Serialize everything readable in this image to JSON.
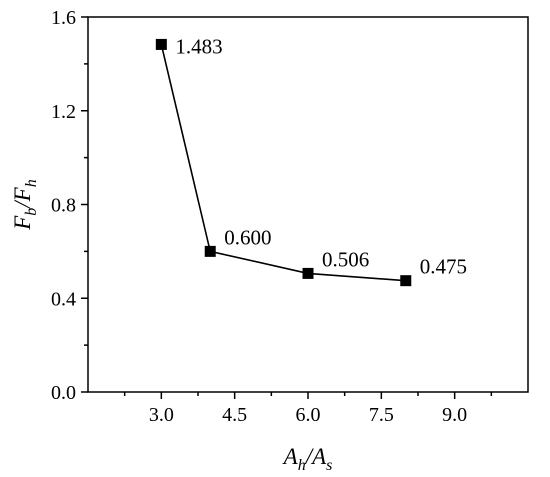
{
  "chart_data": {
    "type": "line",
    "title": "",
    "x": [
      3.0,
      4.0,
      6.0,
      8.0
    ],
    "series": [
      {
        "values": [
          1.483,
          0.6,
          0.506,
          0.475
        ],
        "marker": "square",
        "color": "#000000"
      }
    ],
    "data_labels": [
      "1.483",
      "0.600",
      "0.506",
      "0.475"
    ],
    "xlabel": {
      "main1": "A",
      "sub1": "h",
      "sep": "/",
      "main2": "A",
      "sub2": "s"
    },
    "ylabel": {
      "main1": "F",
      "sub1": "b",
      "sep": "/",
      "main2": "F",
      "sub2": "h"
    },
    "xlim": [
      1.5,
      10.5
    ],
    "ylim": [
      0.0,
      1.6
    ],
    "x_ticks": [
      3.0,
      4.5,
      6.0,
      7.5,
      9.0
    ],
    "x_tick_labels": [
      "3.0",
      "4.5",
      "6.0",
      "7.5",
      "9.0"
    ],
    "y_ticks": [
      0.0,
      0.4,
      0.8,
      1.2,
      1.6
    ],
    "y_tick_labels": [
      "0.0",
      "0.4",
      "0.8",
      "1.2",
      "1.6"
    ],
    "grid": false,
    "legend": "none"
  }
}
